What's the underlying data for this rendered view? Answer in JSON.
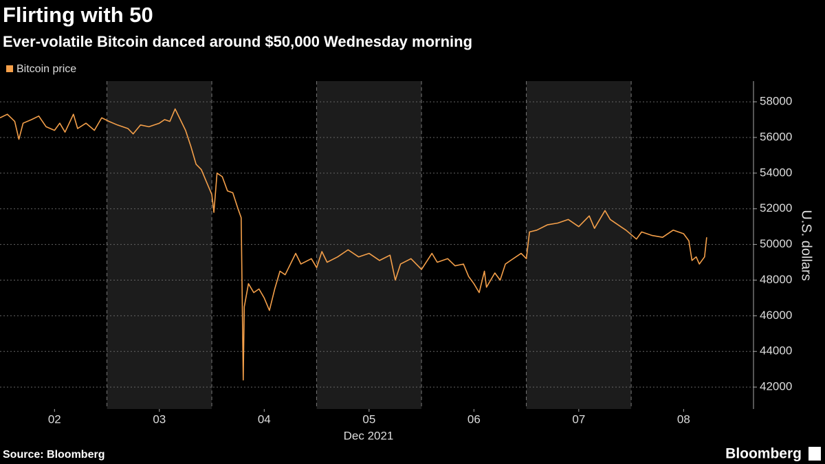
{
  "chart_data": {
    "type": "line",
    "title": "Flirting with 50",
    "subtitle": "Ever-volatile Bitcoin danced around $50,000 Wednesday morning",
    "ylabel": "U.S. dollars",
    "xlabel": "Dec 2021",
    "source": "Source: Bloomberg",
    "brand": "Bloomberg",
    "legend": "top-left",
    "grid": true,
    "xlim": [
      1.48,
      8.66
    ],
    "ylim": [
      40770,
      59160
    ],
    "xticks": [
      {
        "value": 2,
        "label": "02"
      },
      {
        "value": 3,
        "label": "03"
      },
      {
        "value": 4,
        "label": "04"
      },
      {
        "value": 5,
        "label": "05"
      },
      {
        "value": 6,
        "label": "06"
      },
      {
        "value": 7,
        "label": "07"
      },
      {
        "value": 8,
        "label": "08"
      }
    ],
    "yticks": [
      42000,
      44000,
      46000,
      48000,
      50000,
      52000,
      54000,
      56000,
      58000
    ],
    "shaded_spans": [
      [
        2.5,
        3.5
      ],
      [
        4.5,
        5.5
      ],
      [
        6.5,
        7.5
      ]
    ],
    "x": [
      1.48,
      1.55,
      1.62,
      1.66,
      1.7,
      1.78,
      1.85,
      1.92,
      2.0,
      2.05,
      2.1,
      2.18,
      2.22,
      2.3,
      2.38,
      2.45,
      2.52,
      2.6,
      2.7,
      2.75,
      2.82,
      2.9,
      3.0,
      3.05,
      3.1,
      3.15,
      3.2,
      3.25,
      3.3,
      3.35,
      3.4,
      3.45,
      3.5,
      3.52,
      3.55,
      3.6,
      3.65,
      3.7,
      3.75,
      3.78,
      3.79,
      3.8,
      3.81,
      3.85,
      3.9,
      3.95,
      4.0,
      4.05,
      4.1,
      4.15,
      4.2,
      4.3,
      4.35,
      4.45,
      4.5,
      4.55,
      4.6,
      4.7,
      4.8,
      4.9,
      5.0,
      5.1,
      5.2,
      5.25,
      5.3,
      5.4,
      5.5,
      5.6,
      5.65,
      5.75,
      5.82,
      5.9,
      5.95,
      6.0,
      6.05,
      6.1,
      6.12,
      6.2,
      6.25,
      6.3,
      6.35,
      6.45,
      6.5,
      6.53,
      6.6,
      6.7,
      6.8,
      6.9,
      7.0,
      7.1,
      7.15,
      7.25,
      7.3,
      7.4,
      7.45,
      7.55,
      7.6,
      7.7,
      7.8,
      7.9,
      8.0,
      8.05,
      8.08,
      8.12,
      8.15,
      8.2,
      8.22
    ],
    "series": [
      {
        "name": "Bitcoin price",
        "color": "#f5a04a",
        "values": [
          57100,
          57300,
          56900,
          55900,
          56800,
          57000,
          57200,
          56600,
          56400,
          56800,
          56300,
          57300,
          56500,
          56800,
          56400,
          57100,
          56900,
          56700,
          56500,
          56200,
          56700,
          56600,
          56800,
          57000,
          56900,
          57600,
          57000,
          56400,
          55500,
          54500,
          54200,
          53500,
          52800,
          51800,
          54000,
          53800,
          53000,
          52900,
          52000,
          51500,
          47000,
          42400,
          46500,
          47800,
          47300,
          47500,
          47000,
          46300,
          47500,
          48500,
          48300,
          49500,
          48900,
          49200,
          48700,
          49600,
          49000,
          49300,
          49700,
          49300,
          49500,
          49100,
          49400,
          48000,
          48900,
          49200,
          48600,
          49500,
          49000,
          49200,
          48800,
          48900,
          48200,
          47800,
          47300,
          48500,
          47600,
          48400,
          48000,
          48900,
          49100,
          49500,
          49200,
          50700,
          50800,
          51100,
          51200,
          51400,
          51000,
          51600,
          50900,
          51900,
          51400,
          51000,
          50800,
          50300,
          50700,
          50500,
          50400,
          50800,
          50600,
          50200,
          49100,
          49300,
          48900,
          49300,
          50400
        ]
      }
    ]
  }
}
